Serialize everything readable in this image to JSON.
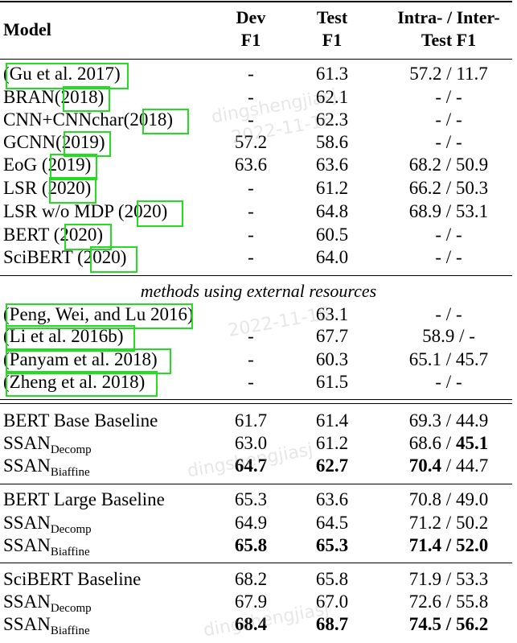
{
  "header": {
    "model": "Model",
    "dev_line1": "Dev",
    "dev_line2": "F1",
    "test_line1": "Test",
    "test_line2": "F1",
    "intra_line1": "Intra- / Inter-",
    "intra_line2": "Test F1"
  },
  "rows": [
    {
      "model_pre": "(",
      "model_cite": "Gu et al. 2017",
      "model_post": ")",
      "dev": "-",
      "test": "61.3",
      "intra": "57.2 / 11.7"
    },
    {
      "model_pre": "BRAN(",
      "model_cite": "2018",
      "model_post": ")",
      "dev": "-",
      "test": "62.1",
      "intra": "- / -"
    },
    {
      "model_pre": "CNN+CNNchar(",
      "model_cite": "2018",
      "model_post": ")",
      "dev": "-",
      "test": "62.3",
      "intra": "- / -"
    },
    {
      "model_pre": "GCNN(",
      "model_cite": "2019",
      "model_post": ")",
      "dev": "57.2",
      "test": "58.6",
      "intra": "- / -"
    },
    {
      "model_pre": "EoG (",
      "model_cite": "2019",
      "model_post": ")",
      "dev": "63.6",
      "test": "63.6",
      "intra": "68.2 / 50.9"
    },
    {
      "model_pre": "LSR (",
      "model_cite": "2020",
      "model_post": ")",
      "dev": "-",
      "test": "61.2",
      "intra": "66.2 / 50.3"
    },
    {
      "model_pre": "LSR w/o MDP (",
      "model_cite": "2020",
      "model_post": ")",
      "dev": "-",
      "test": "64.8",
      "intra": "68.9 / 53.1"
    },
    {
      "model_pre": "BERT (",
      "model_cite": "2020",
      "model_post": ")",
      "dev": "-",
      "test": "60.5",
      "intra": "- / -"
    },
    {
      "model_pre": "SciBERT (",
      "model_cite": "2020",
      "model_post": ")",
      "dev": "-",
      "test": "64.0",
      "intra": "- / -"
    }
  ],
  "section_label": "methods using external resources",
  "external_rows": [
    {
      "model_pre": "(",
      "model_cite": "Peng, Wei, and Lu 2016",
      "model_post": ")",
      "dev": "",
      "test": "63.1",
      "intra": "- / -"
    },
    {
      "model_pre": "(",
      "model_cite": "Li et al. 2016b",
      "model_post": ")",
      "dev": "-",
      "test": "67.7",
      "intra": "58.9 / -"
    },
    {
      "model_pre": "(",
      "model_cite": "Panyam et al. 2018",
      "model_post": ")",
      "dev": "-",
      "test": "60.3",
      "intra": "65.1 / 45.7"
    },
    {
      "model_pre": "(",
      "model_cite": "Zheng et al. 2018",
      "model_post": ")",
      "dev": "-",
      "test": "61.5",
      "intra": "- / -"
    }
  ],
  "groups": [
    {
      "baseline": {
        "model": "BERT Base Baseline",
        "dev": "61.7",
        "test": "61.4",
        "intra_a": "69.3",
        "intra_b": "44.9"
      },
      "decomp": {
        "model": "SSAN",
        "sub": "Decomp",
        "dev": "63.0",
        "test": "61.2",
        "intra_a": "68.6",
        "intra_b": "45.1"
      },
      "biaffine": {
        "model": "SSAN",
        "sub": "Biaffine",
        "dev": "64.7",
        "test": "62.7",
        "intra_a": "70.4",
        "intra_b": "44.7"
      }
    },
    {
      "baseline": {
        "model": "BERT Large Baseline",
        "dev": "65.3",
        "test": "63.6",
        "intra_a": "70.8",
        "intra_b": "49.0"
      },
      "decomp": {
        "model": "SSAN",
        "sub": "Decomp",
        "dev": "64.9",
        "test": "64.5",
        "intra_a": "71.2",
        "intra_b": "50.2"
      },
      "biaffine": {
        "model": "SSAN",
        "sub": "Biaffine",
        "dev": "65.8",
        "test": "65.3",
        "intra_a": "71.4",
        "intra_b": "52.0"
      }
    },
    {
      "baseline": {
        "model": "SciBERT Baseline",
        "dev": "68.2",
        "test": "65.8",
        "intra_a": "71.9",
        "intra_b": "53.3"
      },
      "decomp": {
        "model": "SSAN",
        "sub": "Decomp",
        "dev": "67.9",
        "test": "67.0",
        "intra_a": "72.6",
        "intra_b": "55.8"
      },
      "biaffine": {
        "model": "SSAN",
        "sub": "Biaffine",
        "dev": "68.4",
        "test": "68.7",
        "intra_a": "74.5",
        "intra_b": "56.2"
      }
    }
  ],
  "separator": " / ",
  "watermarks": [
    "dingshengjiasj",
    "2022-11-16"
  ],
  "colors": {
    "citation_box": "#22dd22",
    "text": "#000000"
  }
}
